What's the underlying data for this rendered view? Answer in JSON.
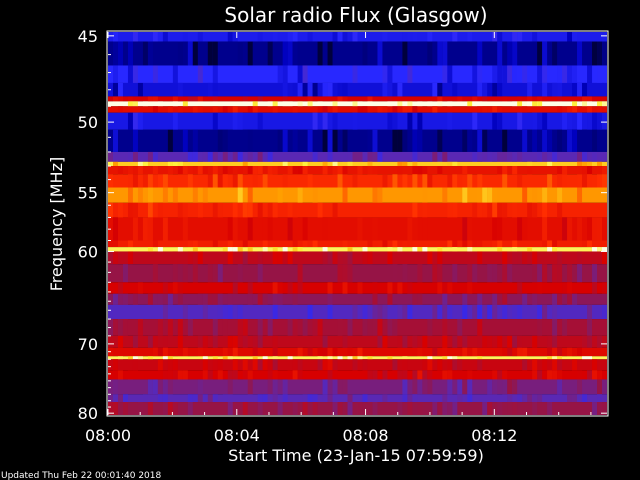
{
  "chart_data": {
    "type": "heatmap",
    "title": "Solar radio Flux (Glasgow)",
    "xlabel": "Start Time (23-Jan-15 07:59:59)",
    "ylabel": "Frequency [MHz]",
    "x_tick_labels": [
      "08:00",
      "08:04",
      "08:08",
      "08:12"
    ],
    "x_ticks_minutes": [
      0,
      4,
      8,
      12
    ],
    "x_range_minutes": [
      0,
      15.5
    ],
    "y_tick_labels": [
      "45",
      "50",
      "55",
      "60",
      "70",
      "80"
    ],
    "y_ticks_mhz": [
      45,
      50,
      55,
      60,
      70,
      80
    ],
    "y_range_mhz": [
      44.8,
      80.3
    ],
    "y_scale": "reciprocal",
    "colormap": "blue-red-yellow-white",
    "frequency_bands": [
      {
        "from_mhz": 44.8,
        "to_mhz": 45.3,
        "level": 0.15
      },
      {
        "from_mhz": 45.3,
        "to_mhz": 46.6,
        "level": 0.05
      },
      {
        "from_mhz": 46.6,
        "to_mhz": 47.6,
        "level": 0.18
      },
      {
        "from_mhz": 47.6,
        "to_mhz": 48.4,
        "level": 0.12
      },
      {
        "from_mhz": 48.4,
        "to_mhz": 48.7,
        "level": 0.55
      },
      {
        "from_mhz": 48.7,
        "to_mhz": 49.0,
        "level": 1.0
      },
      {
        "from_mhz": 49.0,
        "to_mhz": 49.4,
        "level": 0.6
      },
      {
        "from_mhz": 49.4,
        "to_mhz": 50.5,
        "level": 0.14
      },
      {
        "from_mhz": 50.5,
        "to_mhz": 52.0,
        "level": 0.05
      },
      {
        "from_mhz": 52.0,
        "to_mhz": 52.7,
        "level": 0.3
      },
      {
        "from_mhz": 52.7,
        "to_mhz": 53.0,
        "level": 0.9
      },
      {
        "from_mhz": 53.0,
        "to_mhz": 53.6,
        "level": 0.62
      },
      {
        "from_mhz": 53.6,
        "to_mhz": 54.6,
        "level": 0.7
      },
      {
        "from_mhz": 54.6,
        "to_mhz": 55.8,
        "level": 0.84
      },
      {
        "from_mhz": 55.8,
        "to_mhz": 57.0,
        "level": 0.68
      },
      {
        "from_mhz": 57.0,
        "to_mhz": 59.0,
        "level": 0.6
      },
      {
        "from_mhz": 59.0,
        "to_mhz": 59.6,
        "level": 0.66
      },
      {
        "from_mhz": 59.6,
        "to_mhz": 60.0,
        "level": 0.95
      },
      {
        "from_mhz": 60.0,
        "to_mhz": 61.2,
        "level": 0.5
      },
      {
        "from_mhz": 61.2,
        "to_mhz": 63.0,
        "level": 0.42
      },
      {
        "from_mhz": 63.0,
        "to_mhz": 64.2,
        "level": 0.55
      },
      {
        "from_mhz": 64.2,
        "to_mhz": 65.4,
        "level": 0.4
      },
      {
        "from_mhz": 65.4,
        "to_mhz": 67.0,
        "level": 0.28
      },
      {
        "from_mhz": 67.0,
        "to_mhz": 69.0,
        "level": 0.45
      },
      {
        "from_mhz": 69.0,
        "to_mhz": 70.5,
        "level": 0.5
      },
      {
        "from_mhz": 70.5,
        "to_mhz": 71.6,
        "level": 0.58
      },
      {
        "from_mhz": 71.6,
        "to_mhz": 72.0,
        "level": 0.95
      },
      {
        "from_mhz": 72.0,
        "to_mhz": 73.5,
        "level": 0.52
      },
      {
        "from_mhz": 73.5,
        "to_mhz": 74.8,
        "level": 0.55
      },
      {
        "from_mhz": 74.8,
        "to_mhz": 77.0,
        "level": 0.36
      },
      {
        "from_mhz": 77.0,
        "to_mhz": 78.2,
        "level": 0.3
      },
      {
        "from_mhz": 78.2,
        "to_mhz": 80.3,
        "level": 0.42
      }
    ]
  },
  "footer": {
    "updated": "Updated Thu Feb 22 00:01:40 2018"
  }
}
